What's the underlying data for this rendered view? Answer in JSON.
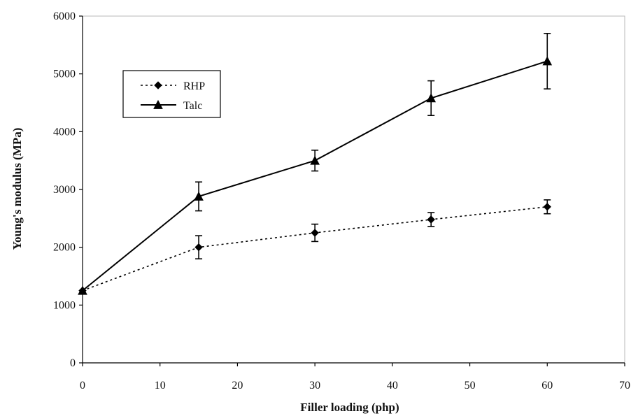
{
  "chart_data": {
    "type": "line",
    "title": "",
    "xlabel": "Filler loading (php)",
    "ylabel": "Young's modulus (MPa)",
    "xlim": [
      0,
      70
    ],
    "ylim": [
      0,
      6000
    ],
    "xticks": [
      0,
      10,
      20,
      30,
      40,
      50,
      60,
      70
    ],
    "yticks": [
      0,
      1000,
      2000,
      3000,
      4000,
      5000,
      6000
    ],
    "legend_position": "top-left",
    "grid": false,
    "series": [
      {
        "name": "RHP",
        "marker": "diamond",
        "line_style": "dotted",
        "color": "#000000",
        "points": [
          {
            "x": 0,
            "y": 1250,
            "err": 0
          },
          {
            "x": 15,
            "y": 2000,
            "err": 200
          },
          {
            "x": 30,
            "y": 2250,
            "err": 150
          },
          {
            "x": 45,
            "y": 2480,
            "err": 120
          },
          {
            "x": 60,
            "y": 2700,
            "err": 120
          }
        ]
      },
      {
        "name": "Talc",
        "marker": "triangle",
        "line_style": "solid",
        "color": "#000000",
        "points": [
          {
            "x": 0,
            "y": 1250,
            "err": 0
          },
          {
            "x": 15,
            "y": 2880,
            "err": 250
          },
          {
            "x": 30,
            "y": 3500,
            "err": 180
          },
          {
            "x": 45,
            "y": 4580,
            "err": 300
          },
          {
            "x": 60,
            "y": 5220,
            "err": 480
          }
        ]
      }
    ]
  }
}
